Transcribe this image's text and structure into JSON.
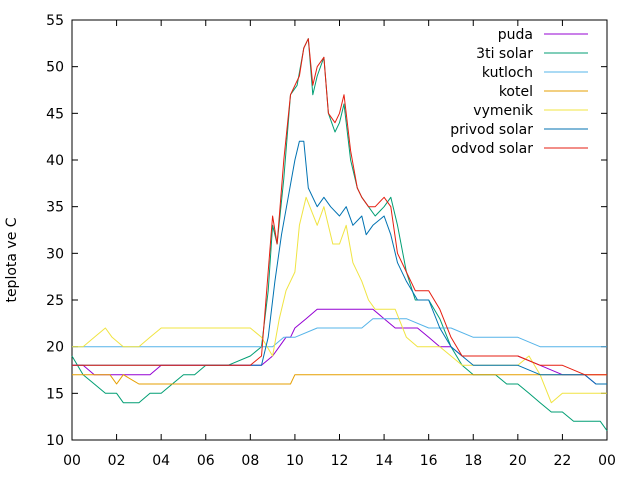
{
  "chart_data": {
    "type": "line",
    "title": "",
    "xlabel": "",
    "ylabel": "teplota ve C",
    "x_ticks": [
      "00",
      "02",
      "04",
      "06",
      "08",
      "10",
      "12",
      "14",
      "16",
      "18",
      "20",
      "22",
      "00"
    ],
    "xlim": [
      0,
      24
    ],
    "ylim": [
      10,
      55
    ],
    "y_ticks": [
      10,
      15,
      20,
      25,
      30,
      35,
      40,
      45,
      50,
      55
    ],
    "grid": false,
    "legend_position": "top-right",
    "series": [
      {
        "name": "puda",
        "color": "#9400d3",
        "points": [
          [
            0,
            18
          ],
          [
            0.5,
            18
          ],
          [
            1,
            17
          ],
          [
            2,
            17
          ],
          [
            2.5,
            17
          ],
          [
            3,
            17
          ],
          [
            3.5,
            17
          ],
          [
            4,
            18
          ],
          [
            5,
            18
          ],
          [
            6,
            18
          ],
          [
            7,
            18
          ],
          [
            8,
            18
          ],
          [
            8.5,
            18
          ],
          [
            9,
            19
          ],
          [
            9.3,
            20
          ],
          [
            9.6,
            21
          ],
          [
            9.8,
            21
          ],
          [
            10,
            22
          ],
          [
            10.5,
            23
          ],
          [
            11,
            24
          ],
          [
            12,
            24
          ],
          [
            13,
            24
          ],
          [
            13.5,
            24
          ],
          [
            14,
            23
          ],
          [
            14.5,
            22
          ],
          [
            15,
            22
          ],
          [
            15.5,
            22
          ],
          [
            16,
            21
          ],
          [
            16.5,
            20
          ],
          [
            17,
            20
          ],
          [
            17.5,
            19
          ],
          [
            18,
            19
          ],
          [
            19,
            19
          ],
          [
            20,
            19
          ],
          [
            21,
            18
          ],
          [
            22,
            17
          ],
          [
            23,
            17
          ],
          [
            23.5,
            16
          ],
          [
            24,
            16
          ]
        ]
      },
      {
        "name": "3ti solar",
        "color": "#009e73",
        "points": [
          [
            0,
            19
          ],
          [
            0.5,
            17
          ],
          [
            1,
            16
          ],
          [
            1.5,
            15
          ],
          [
            2,
            15
          ],
          [
            2.3,
            14
          ],
          [
            3,
            14
          ],
          [
            3.5,
            15
          ],
          [
            4,
            15
          ],
          [
            4.5,
            16
          ],
          [
            5,
            17
          ],
          [
            5.5,
            17
          ],
          [
            6,
            18
          ],
          [
            7,
            18
          ],
          [
            8,
            19
          ],
          [
            8.5,
            20
          ],
          [
            8.8,
            26
          ],
          [
            9,
            33
          ],
          [
            9.2,
            31
          ],
          [
            9.5,
            38
          ],
          [
            9.8,
            47
          ],
          [
            10.1,
            48
          ],
          [
            10.4,
            52
          ],
          [
            10.6,
            53
          ],
          [
            10.8,
            47
          ],
          [
            11,
            49
          ],
          [
            11.3,
            51
          ],
          [
            11.5,
            45
          ],
          [
            11.8,
            43
          ],
          [
            12,
            44
          ],
          [
            12.2,
            46
          ],
          [
            12.5,
            40
          ],
          [
            12.8,
            37
          ],
          [
            13,
            36
          ],
          [
            13.3,
            35
          ],
          [
            13.6,
            34
          ],
          [
            14,
            35
          ],
          [
            14.3,
            36
          ],
          [
            14.6,
            33
          ],
          [
            15,
            28
          ],
          [
            15.4,
            25
          ],
          [
            16,
            25
          ],
          [
            16.5,
            23
          ],
          [
            17,
            20
          ],
          [
            17.5,
            18
          ],
          [
            18,
            17
          ],
          [
            19,
            17
          ],
          [
            19.5,
            16
          ],
          [
            20,
            16
          ],
          [
            20.5,
            15
          ],
          [
            21,
            14
          ],
          [
            21.5,
            13
          ],
          [
            22,
            13
          ],
          [
            22.5,
            12
          ],
          [
            23,
            12
          ],
          [
            23.7,
            12
          ],
          [
            24,
            11
          ]
        ]
      },
      {
        "name": "kutloch",
        "color": "#56b4e9",
        "points": [
          [
            0,
            20
          ],
          [
            1,
            20
          ],
          [
            2,
            20
          ],
          [
            3,
            20
          ],
          [
            4,
            20
          ],
          [
            5,
            20
          ],
          [
            6,
            20
          ],
          [
            7,
            20
          ],
          [
            8,
            20
          ],
          [
            9,
            20
          ],
          [
            9.5,
            21
          ],
          [
            10,
            21
          ],
          [
            11,
            22
          ],
          [
            12,
            22
          ],
          [
            13,
            22
          ],
          [
            13.5,
            23
          ],
          [
            14,
            23
          ],
          [
            15,
            23
          ],
          [
            16,
            22
          ],
          [
            17,
            22
          ],
          [
            18,
            21
          ],
          [
            19,
            21
          ],
          [
            20,
            21
          ],
          [
            21,
            20
          ],
          [
            22,
            20
          ],
          [
            23,
            20
          ],
          [
            24,
            20
          ]
        ]
      },
      {
        "name": "kotel",
        "color": "#e69f00",
        "points": [
          [
            0,
            17
          ],
          [
            1,
            17
          ],
          [
            1.7,
            17
          ],
          [
            2,
            16
          ],
          [
            2.3,
            17
          ],
          [
            3,
            16
          ],
          [
            4,
            16
          ],
          [
            5,
            16
          ],
          [
            6,
            16
          ],
          [
            7,
            16
          ],
          [
            8,
            16
          ],
          [
            9,
            16
          ],
          [
            9.8,
            16
          ],
          [
            10,
            17
          ],
          [
            11,
            17
          ],
          [
            12,
            17
          ],
          [
            13,
            17
          ],
          [
            14,
            17
          ],
          [
            15,
            17
          ],
          [
            16,
            17
          ],
          [
            17,
            17
          ],
          [
            18,
            17
          ],
          [
            19,
            17
          ],
          [
            20,
            17
          ],
          [
            21,
            17
          ],
          [
            22,
            17
          ],
          [
            23,
            17
          ],
          [
            24,
            17
          ]
        ]
      },
      {
        "name": "vymenik",
        "color": "#f0e442",
        "points": [
          [
            0,
            20
          ],
          [
            0.5,
            20
          ],
          [
            1,
            21
          ],
          [
            1.5,
            22
          ],
          [
            1.8,
            21
          ],
          [
            2.3,
            20
          ],
          [
            3,
            20
          ],
          [
            3.5,
            21
          ],
          [
            4,
            22
          ],
          [
            5,
            22
          ],
          [
            6,
            22
          ],
          [
            7,
            22
          ],
          [
            8,
            22
          ],
          [
            8.5,
            21
          ],
          [
            9,
            19
          ],
          [
            9.3,
            23
          ],
          [
            9.6,
            26
          ],
          [
            10,
            28
          ],
          [
            10.2,
            33
          ],
          [
            10.5,
            36
          ],
          [
            11,
            33
          ],
          [
            11.3,
            35
          ],
          [
            11.7,
            31
          ],
          [
            12,
            31
          ],
          [
            12.3,
            33
          ],
          [
            12.6,
            29
          ],
          [
            13,
            27
          ],
          [
            13.3,
            25
          ],
          [
            13.6,
            24
          ],
          [
            14,
            24
          ],
          [
            14.5,
            24
          ],
          [
            15,
            21
          ],
          [
            15.5,
            20
          ],
          [
            16,
            20
          ],
          [
            16.5,
            20
          ],
          [
            17,
            19
          ],
          [
            17.5,
            18
          ],
          [
            18,
            18
          ],
          [
            19,
            18
          ],
          [
            20,
            18
          ],
          [
            20.5,
            19
          ],
          [
            21,
            17
          ],
          [
            21.5,
            14
          ],
          [
            22,
            15
          ],
          [
            23,
            15
          ],
          [
            24,
            15
          ]
        ]
      },
      {
        "name": "privod solar",
        "color": "#0072b2",
        "points": [
          [
            0,
            18
          ],
          [
            1,
            18
          ],
          [
            2,
            18
          ],
          [
            3,
            18
          ],
          [
            4,
            18
          ],
          [
            5,
            18
          ],
          [
            6,
            18
          ],
          [
            7,
            18
          ],
          [
            8,
            18
          ],
          [
            8.5,
            18
          ],
          [
            8.8,
            21
          ],
          [
            9.1,
            27
          ],
          [
            9.4,
            32
          ],
          [
            9.7,
            36
          ],
          [
            10,
            40
          ],
          [
            10.2,
            42
          ],
          [
            10.4,
            42
          ],
          [
            10.6,
            37
          ],
          [
            11,
            35
          ],
          [
            11.3,
            36
          ],
          [
            11.6,
            35
          ],
          [
            12,
            34
          ],
          [
            12.3,
            35
          ],
          [
            12.6,
            33
          ],
          [
            13,
            34
          ],
          [
            13.2,
            32
          ],
          [
            13.5,
            33
          ],
          [
            14,
            34
          ],
          [
            14.3,
            32
          ],
          [
            14.6,
            29
          ],
          [
            15,
            27
          ],
          [
            15.5,
            25
          ],
          [
            16,
            25
          ],
          [
            16.5,
            22
          ],
          [
            17,
            20
          ],
          [
            17.5,
            19
          ],
          [
            18,
            18
          ],
          [
            19,
            18
          ],
          [
            20,
            18
          ],
          [
            21,
            17
          ],
          [
            22,
            17
          ],
          [
            23,
            17
          ],
          [
            23.5,
            16
          ],
          [
            24,
            16
          ]
        ]
      },
      {
        "name": "odvod solar",
        "color": "#e51e10",
        "points": [
          [
            0,
            18
          ],
          [
            1,
            18
          ],
          [
            2,
            18
          ],
          [
            3,
            18
          ],
          [
            4,
            18
          ],
          [
            5,
            18
          ],
          [
            6,
            18
          ],
          [
            7,
            18
          ],
          [
            8,
            18
          ],
          [
            8.5,
            19
          ],
          [
            9,
            34
          ],
          [
            9.2,
            31
          ],
          [
            9.5,
            40
          ],
          [
            9.8,
            47
          ],
          [
            10.2,
            49
          ],
          [
            10.4,
            52
          ],
          [
            10.6,
            53
          ],
          [
            10.8,
            48
          ],
          [
            11,
            50
          ],
          [
            11.3,
            51
          ],
          [
            11.5,
            45
          ],
          [
            11.8,
            44
          ],
          [
            12,
            45
          ],
          [
            12.2,
            47
          ],
          [
            12.5,
            41
          ],
          [
            12.8,
            37
          ],
          [
            13,
            36
          ],
          [
            13.3,
            35
          ],
          [
            13.6,
            35
          ],
          [
            14,
            36
          ],
          [
            14.3,
            35
          ],
          [
            14.6,
            30
          ],
          [
            15,
            28
          ],
          [
            15.4,
            26
          ],
          [
            16,
            26
          ],
          [
            16.5,
            24
          ],
          [
            17,
            21
          ],
          [
            17.5,
            19
          ],
          [
            18,
            19
          ],
          [
            19,
            19
          ],
          [
            20,
            19
          ],
          [
            21,
            18
          ],
          [
            22,
            18
          ],
          [
            23,
            17
          ],
          [
            24,
            17
          ]
        ]
      }
    ]
  }
}
